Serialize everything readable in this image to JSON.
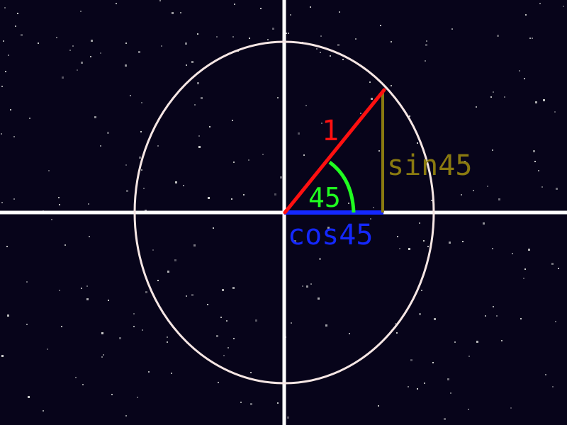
{
  "colors": {
    "background": "#07041a",
    "axes": "#ffffff",
    "circle": "#f6e6e4",
    "radius": "#ff1010",
    "cos_segment": "#1428ff",
    "sin_segment": "#8a7a10",
    "angle_arc": "#20ff20",
    "stars": "#d8d8d8"
  },
  "labels": {
    "radius": "1",
    "angle": "45",
    "cos": "cos45",
    "sin": "sin45"
  },
  "values": {
    "angle_degrees": 45,
    "radius": 1
  }
}
